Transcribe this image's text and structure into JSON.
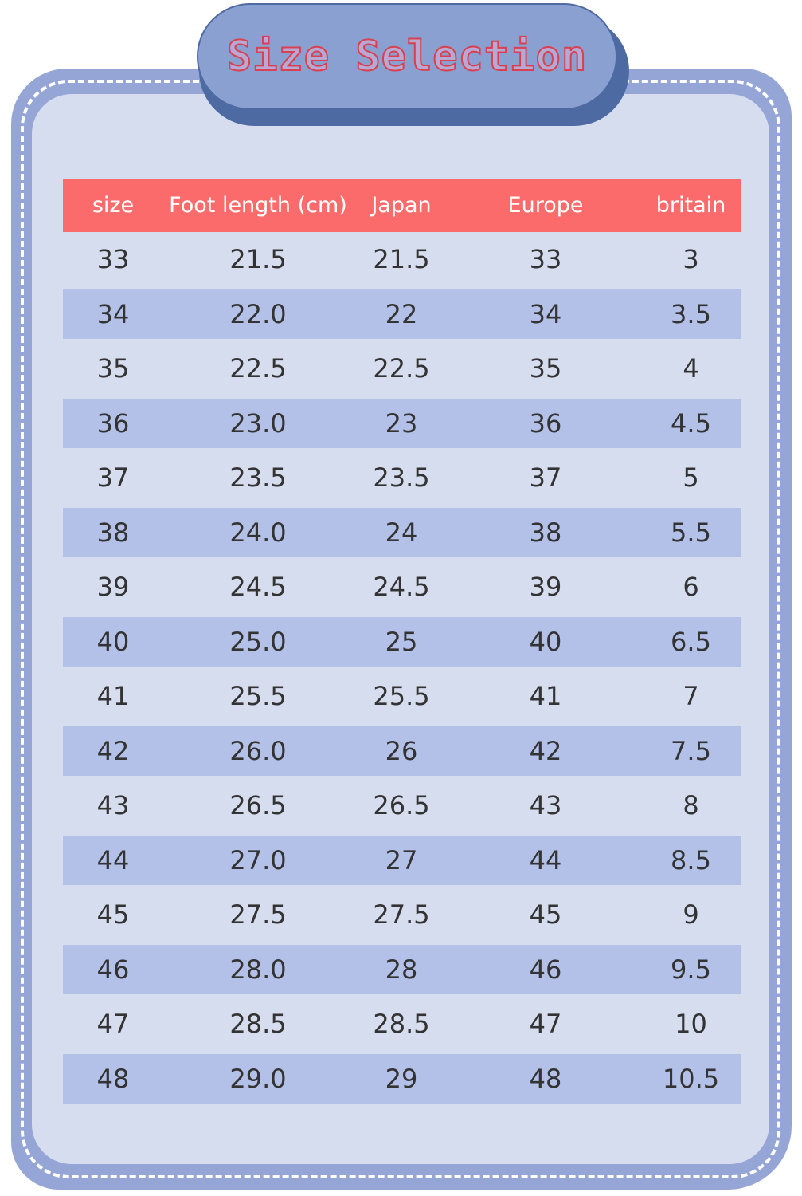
{
  "title": "Size Selection",
  "colors": {
    "header": "#fb6b6b",
    "title_text": "#d94050",
    "frame": "#95a6d6",
    "stripe": "#b3c1e8"
  },
  "table": {
    "headers": [
      "size",
      "Foot length (cm)",
      "Japan",
      "Europe",
      "britain"
    ],
    "rows": [
      [
        "33",
        "21.5",
        "21.5",
        "33",
        "3"
      ],
      [
        "34",
        "22.0",
        "22",
        "34",
        "3.5"
      ],
      [
        "35",
        "22.5",
        "22.5",
        "35",
        "4"
      ],
      [
        "36",
        "23.0",
        "23",
        "36",
        "4.5"
      ],
      [
        "37",
        "23.5",
        "23.5",
        "37",
        "5"
      ],
      [
        "38",
        "24.0",
        "24",
        "38",
        "5.5"
      ],
      [
        "39",
        "24.5",
        "24.5",
        "39",
        "6"
      ],
      [
        "40",
        "25.0",
        "25",
        "40",
        "6.5"
      ],
      [
        "41",
        "25.5",
        "25.5",
        "41",
        "7"
      ],
      [
        "42",
        "26.0",
        "26",
        "42",
        "7.5"
      ],
      [
        "43",
        "26.5",
        "26.5",
        "43",
        "8"
      ],
      [
        "44",
        "27.0",
        "27",
        "44",
        "8.5"
      ],
      [
        "45",
        "27.5",
        "27.5",
        "45",
        "9"
      ],
      [
        "46",
        "28.0",
        "28",
        "46",
        "9.5"
      ],
      [
        "47",
        "28.5",
        "28.5",
        "47",
        "10"
      ],
      [
        "48",
        "29.0",
        "29",
        "48",
        "10.5"
      ]
    ]
  }
}
